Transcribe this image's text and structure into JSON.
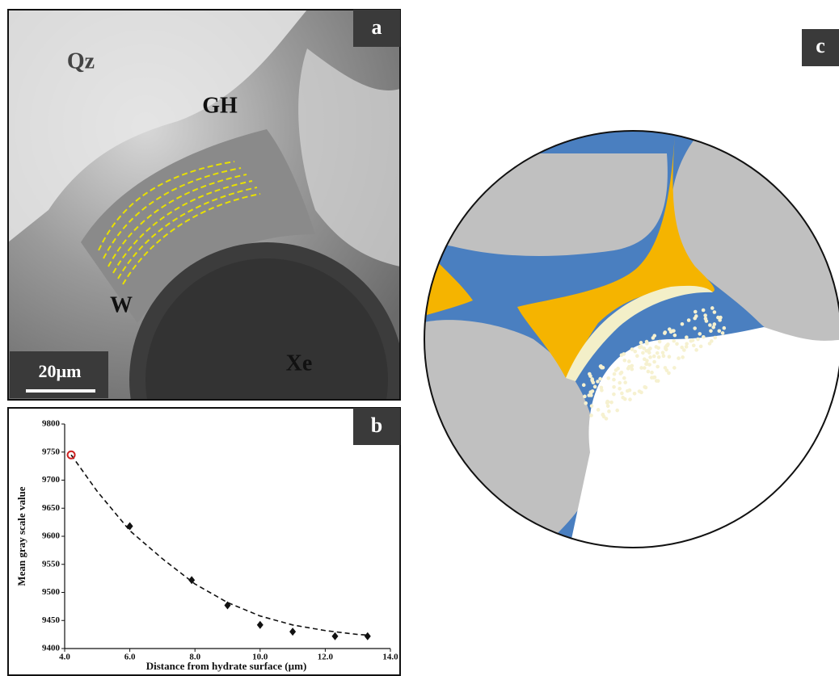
{
  "panel_a": {
    "label": "a",
    "labels": [
      "Qz",
      "GH",
      "W",
      "Xe"
    ],
    "scale_bar": "20µm"
  },
  "panel_c": {
    "label": "c"
  },
  "chart_data": {
    "type": "scatter",
    "label": "b",
    "xlabel": "Distance from hydrate surface (µm)",
    "ylabel": "Mean gray scale value",
    "xlim": [
      4,
      14
    ],
    "ylim": [
      9400,
      9800
    ],
    "xticks": [
      {
        "value": 4,
        "label": "4.0"
      },
      {
        "value": 6,
        "label": "6.0"
      },
      {
        "value": 8,
        "label": "8.0"
      },
      {
        "value": 10,
        "label": "10.0"
      },
      {
        "value": 12,
        "label": "12.0"
      },
      {
        "value": 14,
        "label": "14.0"
      }
    ],
    "yticks": [
      9400,
      9450,
      9500,
      9550,
      9600,
      9650,
      9700,
      9750,
      9800
    ],
    "series": [
      {
        "color": "#cc2222",
        "marker": "open-circle",
        "x": [
          4.2
        ],
        "values": [
          9745
        ]
      },
      {
        "color": "#111111",
        "marker": "diamond",
        "x": [
          6.0,
          7.9,
          9.0,
          10.0,
          11.0,
          12.3,
          13.3
        ],
        "values": [
          9618,
          9522,
          9477,
          9442,
          9430,
          9422,
          9422
        ]
      },
      {
        "color": "#111111",
        "marker": "dashed-line",
        "x": [
          4.2,
          5,
          6,
          7,
          8,
          9,
          10,
          11,
          12,
          13,
          13.3
        ],
        "values": [
          9745,
          9680,
          9610,
          9560,
          9515,
          9482,
          9458,
          9442,
          9432,
          9425,
          9424
        ]
      }
    ]
  }
}
